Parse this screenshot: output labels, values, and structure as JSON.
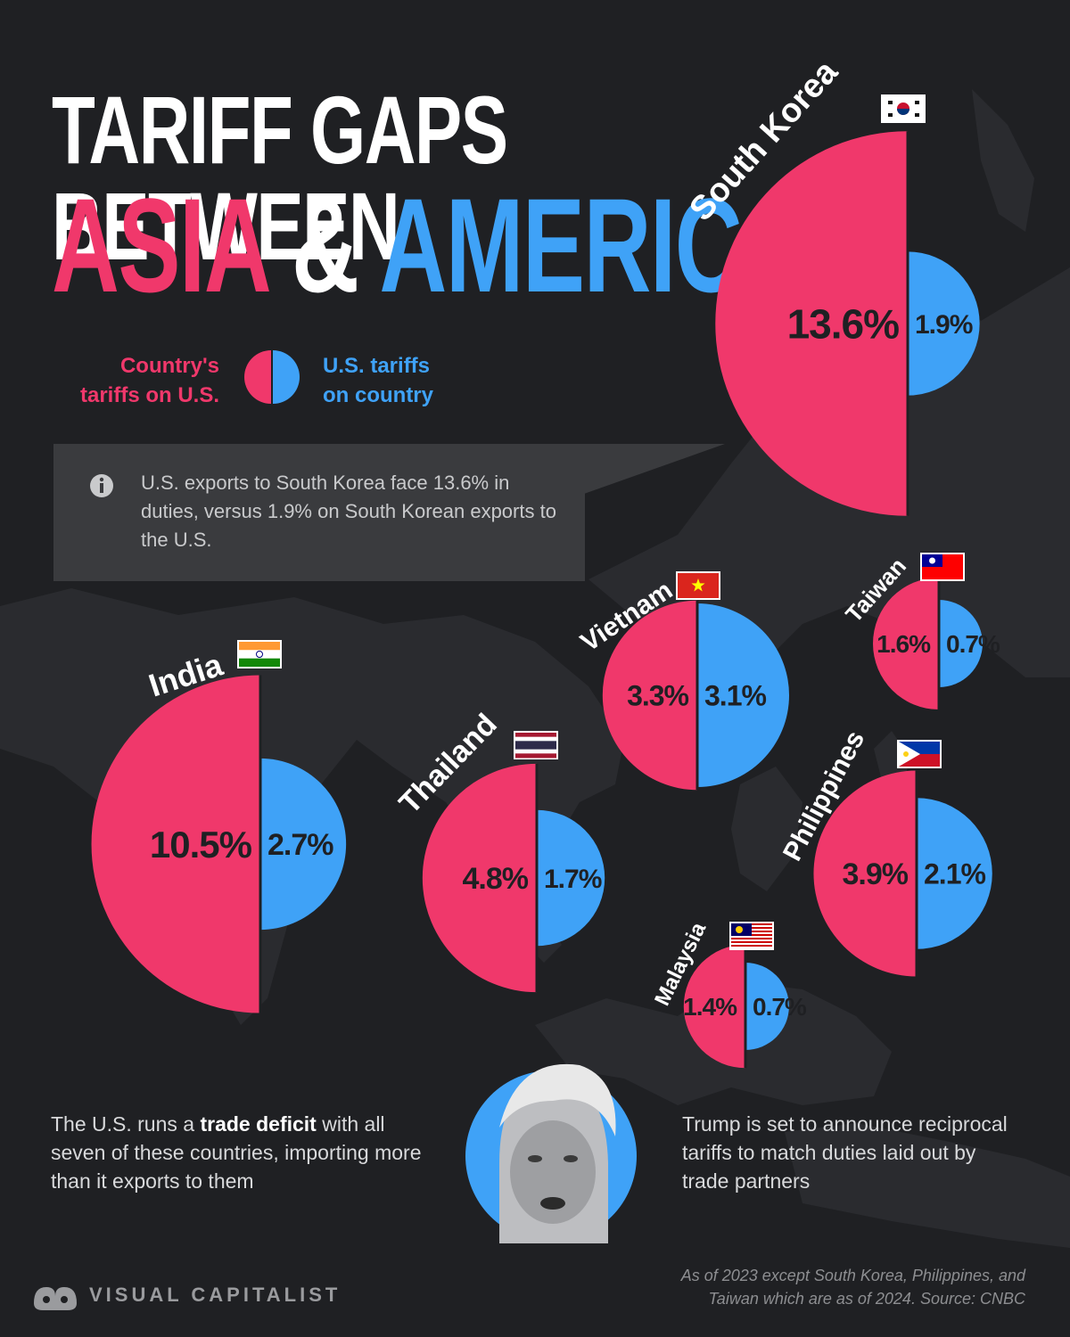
{
  "title": {
    "line1": "TARIFF GAPS BETWEEN",
    "line2_a": "ASIA",
    "line2_b": "&",
    "line2_c": "AMERICA"
  },
  "legend": {
    "left_line1": "Country's",
    "left_line2": "tariffs on U.S.",
    "right_line1": "U.S. tariffs",
    "right_line2": "on country"
  },
  "info_box": {
    "icon": "info-icon",
    "text": "U.S. exports to South Korea face 13.6% in duties, versus 1.9% on South Korean exports to the U.S."
  },
  "notes": {
    "left_before": "The U.S. runs a ",
    "left_bold": "trade deficit",
    "left_after": " with all seven of these countries, importing more than it exports to them",
    "right": "Trump is set to announce reciprocal tariffs to match duties laid out by trade partners"
  },
  "footer": {
    "source_line1": "As of 2023 except South Korea, Philippines, and",
    "source_line2": "Taiwan which are as of 2024. Source: CNBC",
    "brand": "VISUAL CAPITALIST"
  },
  "colors": {
    "country_tariff": "#f0386b",
    "us_tariff": "#3fa2f7",
    "background": "#1f2023"
  },
  "chart_data": {
    "type": "pie",
    "series": [
      {
        "name": "Country's tariffs on U.S."
      },
      {
        "name": "U.S. tariffs on country"
      }
    ],
    "countries": [
      {
        "name": "South Korea",
        "flag": "south-korea-flag-icon",
        "country_tariff": 13.6,
        "us_tariff": 1.9,
        "country_label": "13.6%",
        "us_label": "1.9%"
      },
      {
        "name": "India",
        "flag": "india-flag-icon",
        "country_tariff": 10.5,
        "us_tariff": 2.7,
        "country_label": "10.5%",
        "us_label": "2.7%"
      },
      {
        "name": "Thailand",
        "flag": "thailand-flag-icon",
        "country_tariff": 4.8,
        "us_tariff": 1.7,
        "country_label": "4.8%",
        "us_label": "1.7%"
      },
      {
        "name": "Vietnam",
        "flag": "vietnam-flag-icon",
        "country_tariff": 3.3,
        "us_tariff": 3.1,
        "country_label": "3.3%",
        "us_label": "3.1%"
      },
      {
        "name": "Taiwan",
        "flag": "taiwan-flag-icon",
        "country_tariff": 1.6,
        "us_tariff": 0.7,
        "country_label": "1.6%",
        "us_label": "0.7%"
      },
      {
        "name": "Philippines",
        "flag": "philippines-flag-icon",
        "country_tariff": 3.9,
        "us_tariff": 2.1,
        "country_label": "3.9%",
        "us_label": "2.1%"
      },
      {
        "name": "Malaysia",
        "flag": "malaysia-flag-icon",
        "country_tariff": 1.4,
        "us_tariff": 0.7,
        "country_label": "1.4%",
        "us_label": "0.7%"
      }
    ]
  }
}
